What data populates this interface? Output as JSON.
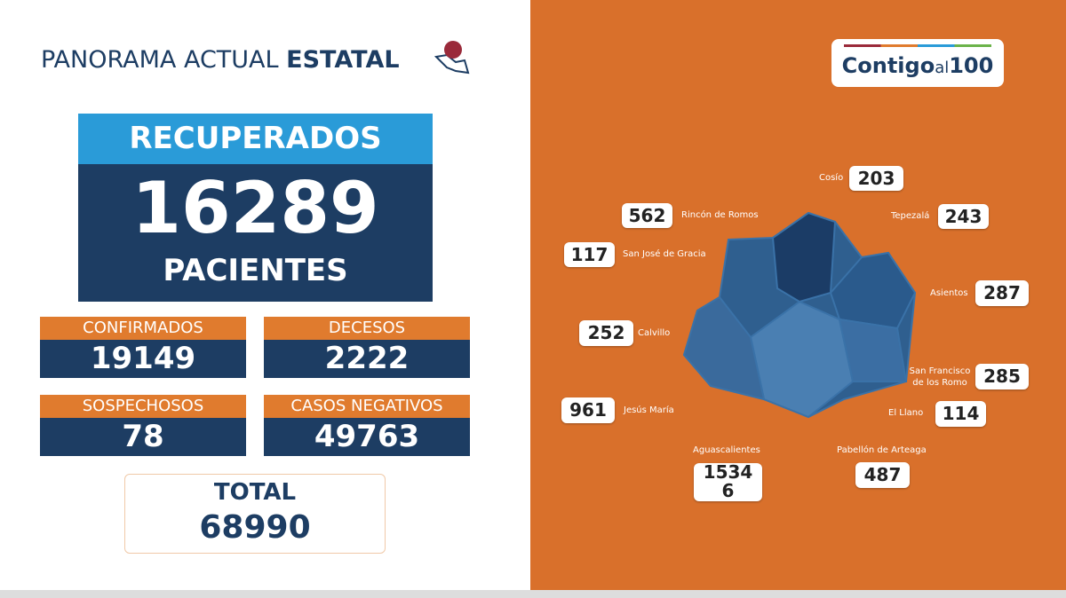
{
  "header": {
    "title": "PANORAMA ACTUAL",
    "title_bold": "ESTATAL"
  },
  "recuperados": {
    "label": "RECUPERADOS",
    "value": "16289",
    "unit": "PACIENTES"
  },
  "stats": [
    {
      "label": "CONFIRMADOS",
      "value": "19149"
    },
    {
      "label": "DECESOS",
      "value": "2222"
    },
    {
      "label": "SOSPECHOSOS",
      "value": "78"
    },
    {
      "label": "CASOS NEGATIVOS",
      "value": "49763"
    }
  ],
  "total": {
    "label": "TOTAL",
    "value": "68990"
  },
  "logo": {
    "word": "Contigo",
    "small": "al",
    "number": "100"
  },
  "municipalities": [
    {
      "name": "Cosío",
      "value": "203"
    },
    {
      "name": "Rincón de Romos",
      "value": "562"
    },
    {
      "name": "Tepezalá",
      "value": "243"
    },
    {
      "name": "San José de Gracia",
      "value": "117"
    },
    {
      "name": "Asientos",
      "value": "287"
    },
    {
      "name": "Calvillo",
      "value": "252"
    },
    {
      "name": "San Francisco de los Romo",
      "value": "285"
    },
    {
      "name": "Jesús María",
      "value": "961"
    },
    {
      "name": "El Llano",
      "value": "114"
    },
    {
      "name": "Aguascalientes",
      "value": "15346"
    },
    {
      "name": "Pabellón de Arteaga",
      "value": "487"
    }
  ]
}
